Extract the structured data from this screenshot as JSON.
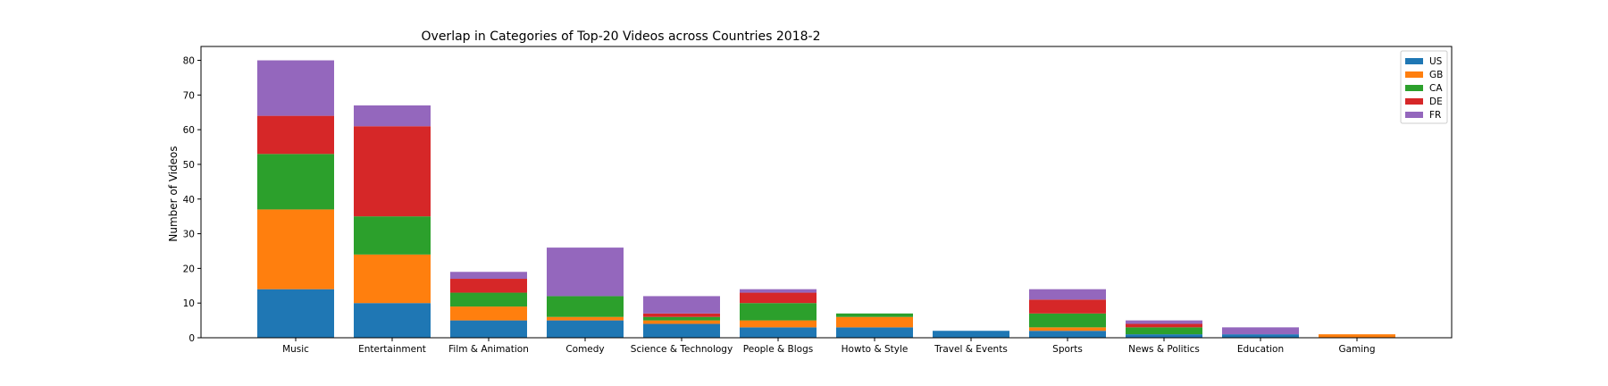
{
  "chart_data": {
    "type": "bar",
    "stacked": true,
    "title": "Overlap in Categories of Top-20 Videos across Countries 2018-2",
    "xlabel": "",
    "ylabel": "Number of Videos",
    "ylim": [
      0,
      84
    ],
    "yticks": [
      0,
      10,
      20,
      30,
      40,
      50,
      60,
      70,
      80
    ],
    "grid": false,
    "legend_position": "top-right",
    "categories": [
      "Music",
      "Entertainment",
      "Film & Animation",
      "Comedy",
      "Science & Technology",
      "People & Blogs",
      "Howto & Style",
      "Travel & Events",
      "Sports",
      "News & Politics",
      "Education",
      "Gaming"
    ],
    "series": [
      {
        "name": "US",
        "color": "#1f77b4",
        "values": [
          14,
          10,
          5,
          5,
          4,
          3,
          3,
          2,
          2,
          1,
          1,
          0
        ]
      },
      {
        "name": "GB",
        "color": "#ff7f0e",
        "values": [
          23,
          14,
          4,
          1,
          1,
          2,
          3,
          0,
          1,
          0,
          0,
          1
        ]
      },
      {
        "name": "CA",
        "color": "#2ca02c",
        "values": [
          16,
          11,
          4,
          6,
          1,
          5,
          1,
          0,
          4,
          2,
          0,
          0
        ]
      },
      {
        "name": "DE",
        "color": "#d62728",
        "values": [
          11,
          26,
          4,
          0,
          1,
          3,
          0,
          0,
          4,
          1,
          0,
          0
        ]
      },
      {
        "name": "FR",
        "color": "#9467bd",
        "values": [
          16,
          6,
          2,
          14,
          5,
          1,
          0,
          0,
          3,
          1,
          2,
          0
        ]
      }
    ]
  }
}
